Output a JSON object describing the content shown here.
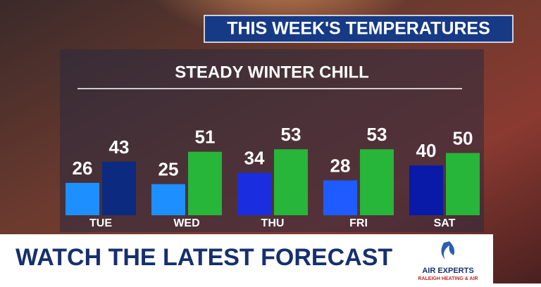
{
  "banner": "THIS WEEK'S TEMPERATURES",
  "chart_data": {
    "type": "bar",
    "title": "STEADY WINTER CHILL",
    "categories": [
      "TUE",
      "WED",
      "THU",
      "FRI",
      "SAT"
    ],
    "series": [
      {
        "values": [
          26,
          25,
          34,
          28,
          40
        ],
        "colors": [
          "#1e8fff",
          "#1e8fff",
          "#1a2ee0",
          "#1e5cff",
          "#0a1aa8"
        ]
      },
      {
        "values": [
          43,
          51,
          53,
          53,
          50
        ],
        "colors": [
          "#0c2a80",
          "#27b53a",
          "#27b53a",
          "#27b53a",
          "#27b53a"
        ]
      }
    ]
  },
  "footer": "WATCH THE LATEST FORECAST",
  "sponsor": {
    "name": "AIR EXPERTS",
    "tagline": "RALEIGH HEATING & AIR"
  }
}
